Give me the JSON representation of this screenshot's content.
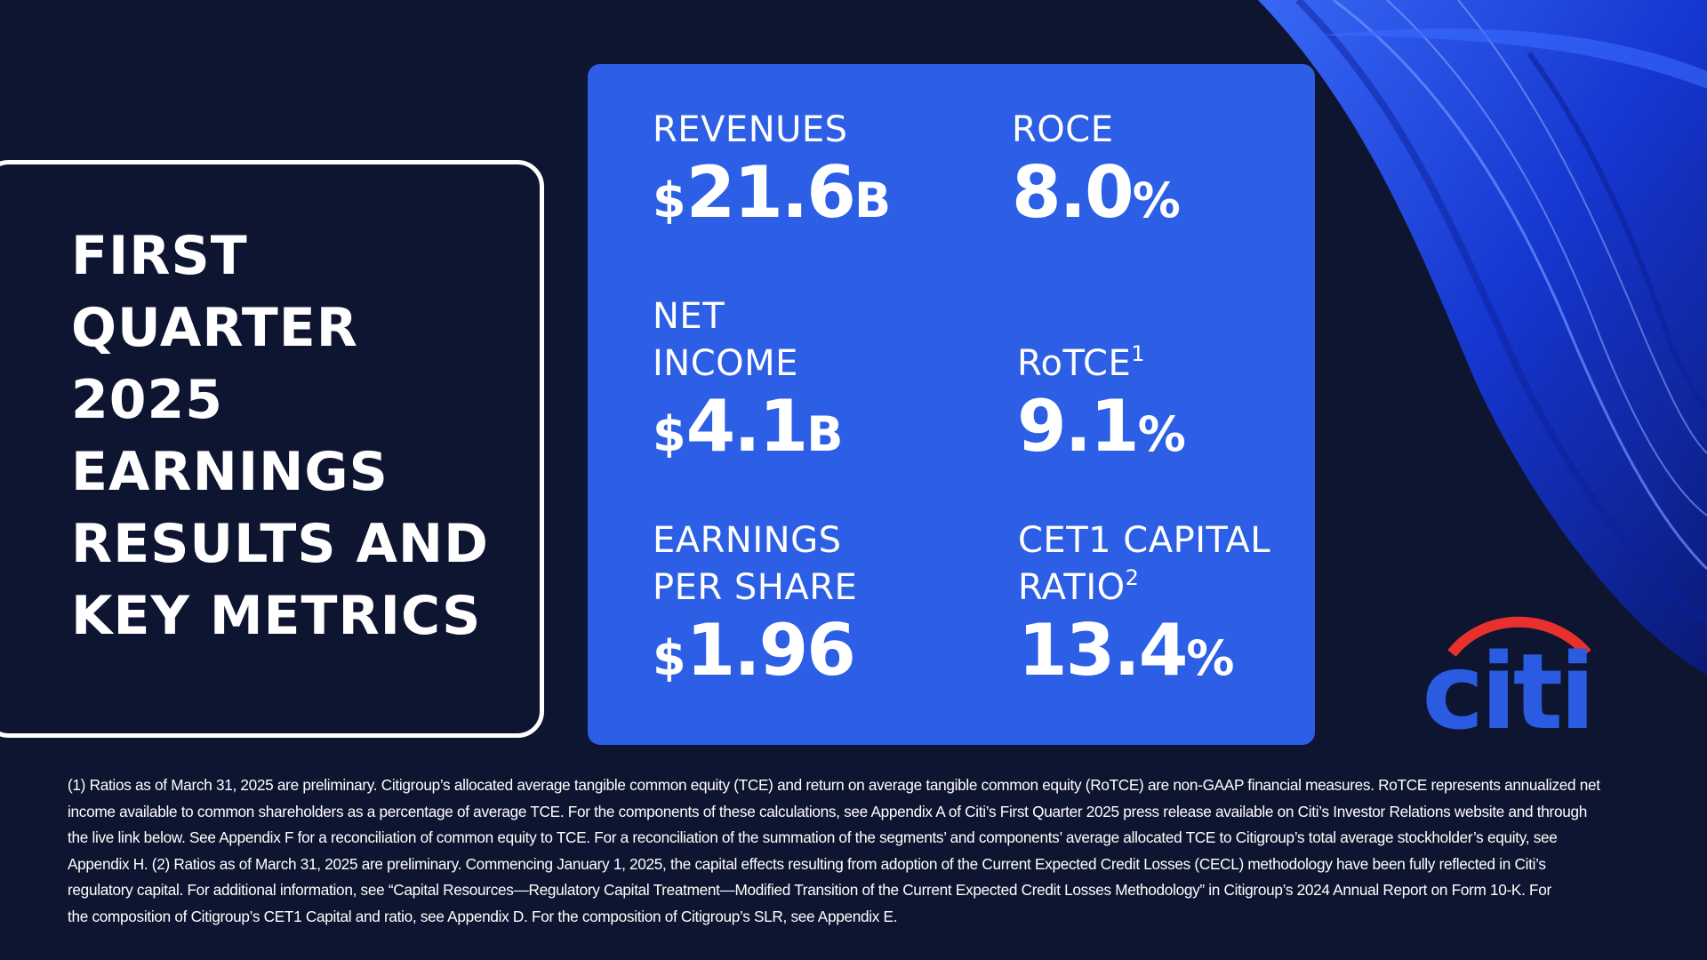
{
  "title": {
    "lines": [
      "FIRST",
      "QUARTER",
      "2025",
      "EARNINGS",
      "RESULTS AND",
      "KEY METRICS"
    ]
  },
  "metrics": {
    "revenues": {
      "label": "REVENUES",
      "prefix": "$",
      "number": "21.6",
      "suffix": "B"
    },
    "roce": {
      "label": "ROCE",
      "prefix": "",
      "number": "8.0",
      "suffix": "%"
    },
    "net_income": {
      "label_line1": "NET",
      "label_line2": "INCOME",
      "prefix": "$",
      "number": "4.1",
      "suffix": "B"
    },
    "rotce": {
      "label": "RoTCE",
      "footnote_mark": "1",
      "prefix": "",
      "number": "9.1",
      "suffix": "%"
    },
    "eps": {
      "label_line1": "EARNINGS",
      "label_line2": "PER SHARE",
      "prefix": "$",
      "number": "1.96",
      "suffix": ""
    },
    "cet1": {
      "label_line1": "CET1 CAPITAL",
      "label_line2": "RATIO",
      "footnote_mark": "2",
      "prefix": "",
      "number": "13.4",
      "suffix": "%"
    }
  },
  "logo": {
    "text": "citi",
    "icon": "citi-arc-logo"
  },
  "footnote": {
    "lines": [
      "(1) Ratios as of March 31, 2025 are preliminary. Citigroup’s allocated average tangible common equity (TCE) and return on average tangible common equity (RoTCE) are non-GAAP financial measures. RoTCE represents annualized net",
      "income available to common shareholders as a percentage of average TCE. For the components of these calculations, see Appendix A of Citi’s First Quarter 2025 press release available on Citi’s Investor Relations website and through",
      "the live link below. See Appendix F for a reconciliation of common equity to TCE. For a reconciliation of the summation of the segments’ and components’ average allocated TCE to Citigroup’s total average stockholder’s equity, see",
      "Appendix H. (2) Ratios as of March 31, 2025 are preliminary. Commencing January 1, 2025, the capital effects resulting from adoption of the Current Expected Credit Losses (CECL) methodology have been fully reflected in Citi’s",
      "regulatory capital. For additional information, see “Capital Resources—Regulatory Capital Treatment—Modified Transition of the Current Expected Credit Losses Methodology” in Citigroup’s 2024 Annual Report on Form 10-K. For",
      "the composition of Citigroup’s CET1 Capital and ratio, see Appendix D. For the composition of Citigroup’s SLR, see Appendix E."
    ]
  },
  "colors": {
    "background": "#0e1530",
    "panel": "#2c5fe6",
    "logo_blue": "#2a5be0",
    "logo_red": "#e8312f"
  }
}
